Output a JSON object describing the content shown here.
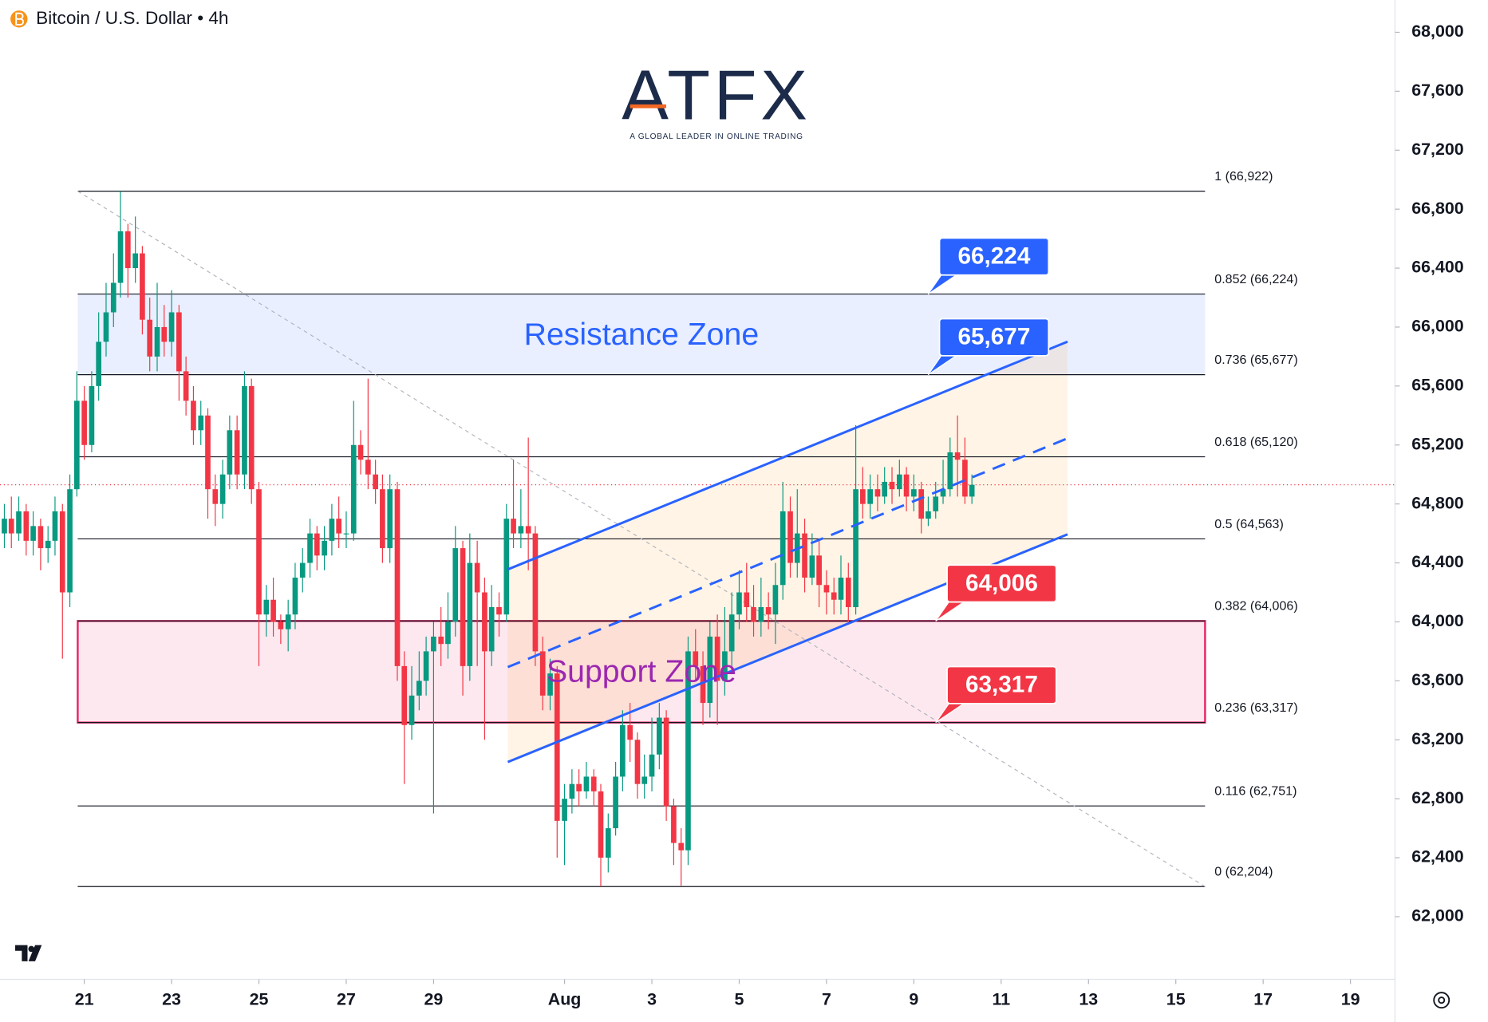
{
  "chart_data": {
    "type": "candlestick",
    "title": "Bitcoin / U.S. Dollar • 4h",
    "logo_text": "ATFX",
    "logo_tagline": "A GLOBAL LEADER IN ONLINE TRADING",
    "up_color": "#089981",
    "down_color": "#f23645",
    "x": [
      19.17,
      19.33,
      19.5,
      19.67,
      19.83,
      20,
      20.17,
      20.33,
      20.5,
      20.67,
      20.83,
      21,
      21.17,
      21.33,
      21.5,
      21.67,
      21.83,
      22,
      22.17,
      22.33,
      22.5,
      22.67,
      22.83,
      23,
      23.17,
      23.33,
      23.5,
      23.67,
      23.83,
      24,
      24.17,
      24.33,
      24.5,
      24.67,
      24.83,
      25,
      25.17,
      25.33,
      25.5,
      25.67,
      25.83,
      26,
      26.17,
      26.33,
      26.5,
      26.67,
      26.83,
      27,
      27.17,
      27.33,
      27.5,
      27.67,
      27.83,
      28,
      28.17,
      28.33,
      28.5,
      28.67,
      28.83,
      29,
      29.17,
      29.33,
      29.5,
      29.67,
      29.83,
      30,
      30.17,
      30.33,
      30.5,
      30.67,
      30.83,
      31,
      31.17,
      31.33,
      31.5,
      31.67,
      31.83,
      32,
      32.17,
      32.33,
      32.5,
      32.67,
      32.83,
      33,
      33.17,
      33.33,
      33.5,
      33.67,
      33.83,
      34,
      34.17,
      34.33,
      34.5,
      34.67,
      34.83,
      35,
      35.17,
      35.33,
      35.5,
      35.67,
      35.83,
      36,
      36.17,
      36.33,
      36.5,
      36.67,
      36.83,
      37,
      37.17,
      37.33,
      37.5,
      37.67,
      37.83,
      38,
      38.17,
      38.33,
      38.5,
      38.67,
      38.83,
      39,
      39.17,
      39.33,
      39.5,
      39.67,
      39.83,
      40,
      40.17,
      40.33,
      40.5,
      40.67,
      40.83,
      41,
      41.17,
      41.33
    ],
    "open": [
      64600,
      64700,
      64600,
      64750,
      64550,
      64650,
      64500,
      64550,
      64750,
      64200,
      64900,
      65500,
      65200,
      65600,
      65900,
      66100,
      66300,
      66650,
      66400,
      66500,
      66050,
      65800,
      66000,
      65900,
      66100,
      65700,
      65500,
      65300,
      65400,
      64900,
      64800,
      65000,
      65300,
      65000,
      65600,
      64900,
      64050,
      64150,
      64000,
      63950,
      64050,
      64300,
      64400,
      64600,
      64450,
      64550,
      64700,
      64600,
      64600,
      65200,
      65100,
      65000,
      64900,
      64500,
      64900,
      63700,
      63300,
      63500,
      63600,
      63800,
      63900,
      63850,
      64000,
      64500,
      63700,
      64400,
      64200,
      63800,
      64100,
      64050,
      64700,
      64600,
      64650,
      64600,
      63800,
      63500,
      63650,
      62650,
      62800,
      62900,
      62850,
      62950,
      62850,
      62400,
      62600,
      62950,
      63300,
      63200,
      62900,
      62950,
      63100,
      63350,
      62750,
      62500,
      62450,
      63800,
      63700,
      63450,
      63900,
      63600,
      63800,
      64050,
      64200,
      64100,
      64000,
      64100,
      64050,
      64250,
      64750,
      64400,
      64600,
      64300,
      64450,
      64250,
      64200,
      64150,
      64300,
      64100,
      64900,
      64800,
      64900,
      64850,
      64950,
      64900,
      65000,
      64850,
      64900,
      64700,
      64750,
      64850,
      64900,
      65150,
      65100,
      64850
    ],
    "high": [
      64800,
      64850,
      64850,
      64800,
      64750,
      64700,
      64650,
      64850,
      64800,
      65000,
      65700,
      65600,
      65700,
      66100,
      66300,
      66500,
      66922,
      66700,
      66750,
      66550,
      66200,
      66300,
      66150,
      66250,
      66150,
      65800,
      65600,
      65500,
      65450,
      65000,
      65100,
      65400,
      65400,
      65700,
      65650,
      64950,
      64250,
      64300,
      64050,
      64150,
      64400,
      64500,
      64700,
      64650,
      64650,
      64800,
      64850,
      64750,
      65500,
      65300,
      65650,
      65100,
      65000,
      65000,
      64950,
      63800,
      63700,
      63800,
      63900,
      64000,
      64100,
      64200,
      64650,
      64550,
      64600,
      64550,
      64300,
      64250,
      64200,
      64800,
      65100,
      64900,
      65250,
      64650,
      63900,
      63750,
      63700,
      62900,
      63000,
      63000,
      63050,
      63000,
      62900,
      62700,
      63050,
      63400,
      63450,
      63250,
      63100,
      63350,
      63450,
      63400,
      62800,
      62600,
      63900,
      63950,
      63800,
      64000,
      64050,
      64100,
      64200,
      64350,
      64400,
      64250,
      64300,
      64200,
      64400,
      64950,
      64850,
      64900,
      64700,
      64600,
      64550,
      64350,
      64300,
      64450,
      64400,
      65335,
      65050,
      65000,
      65000,
      65050,
      65050,
      65100,
      65050,
      65000,
      64950,
      64850,
      64950,
      65100,
      65250,
      65400,
      65250,
      65000
    ],
    "low": [
      64500,
      64500,
      64550,
      64450,
      64450,
      64350,
      64400,
      64450,
      63750,
      64100,
      64850,
      65100,
      65150,
      65500,
      65800,
      66000,
      66200,
      66200,
      66300,
      65950,
      65700,
      65700,
      65800,
      65800,
      65500,
      65400,
      65200,
      65200,
      64700,
      64650,
      64700,
      64900,
      64900,
      64900,
      64800,
      63700,
      63900,
      63900,
      63850,
      63800,
      63950,
      64200,
      64300,
      64350,
      64350,
      64450,
      64500,
      64500,
      64550,
      65000,
      64900,
      64800,
      64400,
      64400,
      63600,
      62900,
      63200,
      63400,
      63500,
      62700,
      63700,
      63750,
      63900,
      63500,
      63600,
      63700,
      63200,
      63700,
      63900,
      64000,
      64500,
      64500,
      64350,
      63700,
      63400,
      63400,
      62400,
      62350,
      62700,
      62750,
      62800,
      62750,
      62204,
      62300,
      62550,
      62850,
      63050,
      62800,
      62800,
      62850,
      63000,
      62650,
      62350,
      62210,
      62350,
      63600,
      63300,
      63350,
      63300,
      63500,
      63700,
      63950,
      64000,
      63900,
      63900,
      63950,
      63850,
      64150,
      64300,
      64300,
      64200,
      64250,
      64100,
      64050,
      64050,
      64050,
      64000,
      64050,
      64700,
      64700,
      64750,
      64800,
      64800,
      64850,
      64750,
      64750,
      64600,
      64650,
      64700,
      64800,
      64850,
      64850,
      64800,
      64800
    ],
    "close": [
      64700,
      64600,
      64750,
      64550,
      64650,
      64500,
      64550,
      64750,
      64200,
      64900,
      65500,
      65200,
      65600,
      65900,
      66100,
      66300,
      66650,
      66400,
      66500,
      66050,
      65800,
      66000,
      65900,
      66100,
      65700,
      65500,
      65300,
      65400,
      64900,
      64800,
      65000,
      65300,
      65000,
      65600,
      64900,
      64050,
      64150,
      64000,
      63950,
      64050,
      64300,
      64400,
      64600,
      64450,
      64550,
      64700,
      64600,
      64600,
      65200,
      65100,
      65000,
      64900,
      64500,
      64900,
      63700,
      63300,
      63500,
      63600,
      63800,
      63900,
      63850,
      64000,
      64500,
      63700,
      64400,
      64200,
      63800,
      64100,
      64050,
      64700,
      64600,
      64650,
      64600,
      63800,
      63500,
      63650,
      62650,
      62800,
      62900,
      62850,
      62950,
      62850,
      62400,
      62600,
      62950,
      63300,
      63200,
      62900,
      62950,
      63100,
      63350,
      62750,
      62500,
      62450,
      63800,
      63700,
      63450,
      63900,
      63600,
      63800,
      64050,
      64200,
      64100,
      64000,
      64100,
      64050,
      64250,
      64750,
      64400,
      64600,
      64300,
      64450,
      64250,
      64200,
      64150,
      64300,
      64100,
      64900,
      64800,
      64900,
      64850,
      64950,
      64900,
      65000,
      64850,
      64900,
      64700,
      64750,
      64850,
      64900,
      65150,
      65100,
      64850,
      64930
    ],
    "xlim": [
      19.07,
      51.02
    ],
    "xticks": [
      21,
      23,
      25,
      27,
      29,
      {
        "value": 32,
        "label": "Aug"
      },
      {
        "value": 34,
        "label": "3"
      },
      {
        "value": 36,
        "label": "5"
      },
      {
        "value": 38,
        "label": "7"
      },
      {
        "value": 40,
        "label": "9"
      },
      {
        "value": 42,
        "label": "11"
      },
      {
        "value": 44,
        "label": "13"
      },
      {
        "value": 46,
        "label": "15"
      },
      {
        "value": 48,
        "label": "17"
      },
      {
        "value": 50,
        "label": "19"
      }
    ],
    "ylim": [
      61575,
      68219
    ],
    "yticks": [
      {
        "value": 62000,
        "label": "62,000"
      },
      {
        "value": 62400,
        "label": "62,400"
      },
      {
        "value": 62800,
        "label": "62,800"
      },
      {
        "value": 63200,
        "label": "63,200"
      },
      {
        "value": 63600,
        "label": "63,600"
      },
      {
        "value": 64000,
        "label": "64,000"
      },
      {
        "value": 64400,
        "label": "64,400"
      },
      {
        "value": 64800,
        "label": "64,800"
      },
      {
        "value": 65200,
        "label": "65,200"
      },
      {
        "value": 65600,
        "label": "65,600"
      },
      {
        "value": 66000,
        "label": "66,000"
      },
      {
        "value": 66400,
        "label": "66,400"
      },
      {
        "value": 66800,
        "label": "66,800"
      },
      {
        "value": 67200,
        "label": "67,200"
      },
      {
        "value": 67600,
        "label": "67,600"
      },
      {
        "value": 68000,
        "label": "68,000"
      }
    ],
    "fib_x": [
      20.85,
      46.67
    ],
    "fib_levels": [
      {
        "value": 66922,
        "label": "1 (66,922)"
      },
      {
        "value": 66224,
        "label": "0.852 (66,224)"
      },
      {
        "value": 65677,
        "label": "0.736 (65,677)"
      },
      {
        "value": 65120,
        "label": "0.618 (65,120)"
      },
      {
        "value": 64563,
        "label": "0.5 (64,563)"
      },
      {
        "value": 64006,
        "label": "0.382 (64,006)"
      },
      {
        "value": 63317,
        "label": "0.236 (63,317)"
      },
      {
        "value": 62751,
        "label": "0.116 (62,751)"
      },
      {
        "value": 62204,
        "label": "0 (62,204)"
      }
    ],
    "zones": [
      {
        "name": "Resistance Zone",
        "from": 65677,
        "to": 66224,
        "color": "#2962ff",
        "text_color": "#2962ff"
      },
      {
        "name": "Support Zone",
        "from": 63317,
        "to": 64006,
        "color": "#e91e63",
        "text_color": "#9c27b0"
      }
    ],
    "price_labels": [
      {
        "value": 66224,
        "label": "66,224",
        "color": "#2962ff"
      },
      {
        "value": 65677,
        "label": "65,677",
        "color": "#2962ff"
      },
      {
        "value": 64006,
        "label": "64,006",
        "color": "#f23645"
      },
      {
        "value": 63317,
        "label": "63,317",
        "color": "#f23645"
      }
    ],
    "channel": {
      "color": "#2962ff",
      "fill": "#ff9800",
      "x": [
        30.7,
        43.52
      ],
      "upper": [
        64356,
        65901
      ],
      "middle": [
        63693,
        65245
      ],
      "lower": [
        63049,
        64594
      ]
    },
    "trend": {
      "x": [
        20.85,
        46.67
      ],
      "y": [
        66922,
        62204
      ]
    }
  }
}
